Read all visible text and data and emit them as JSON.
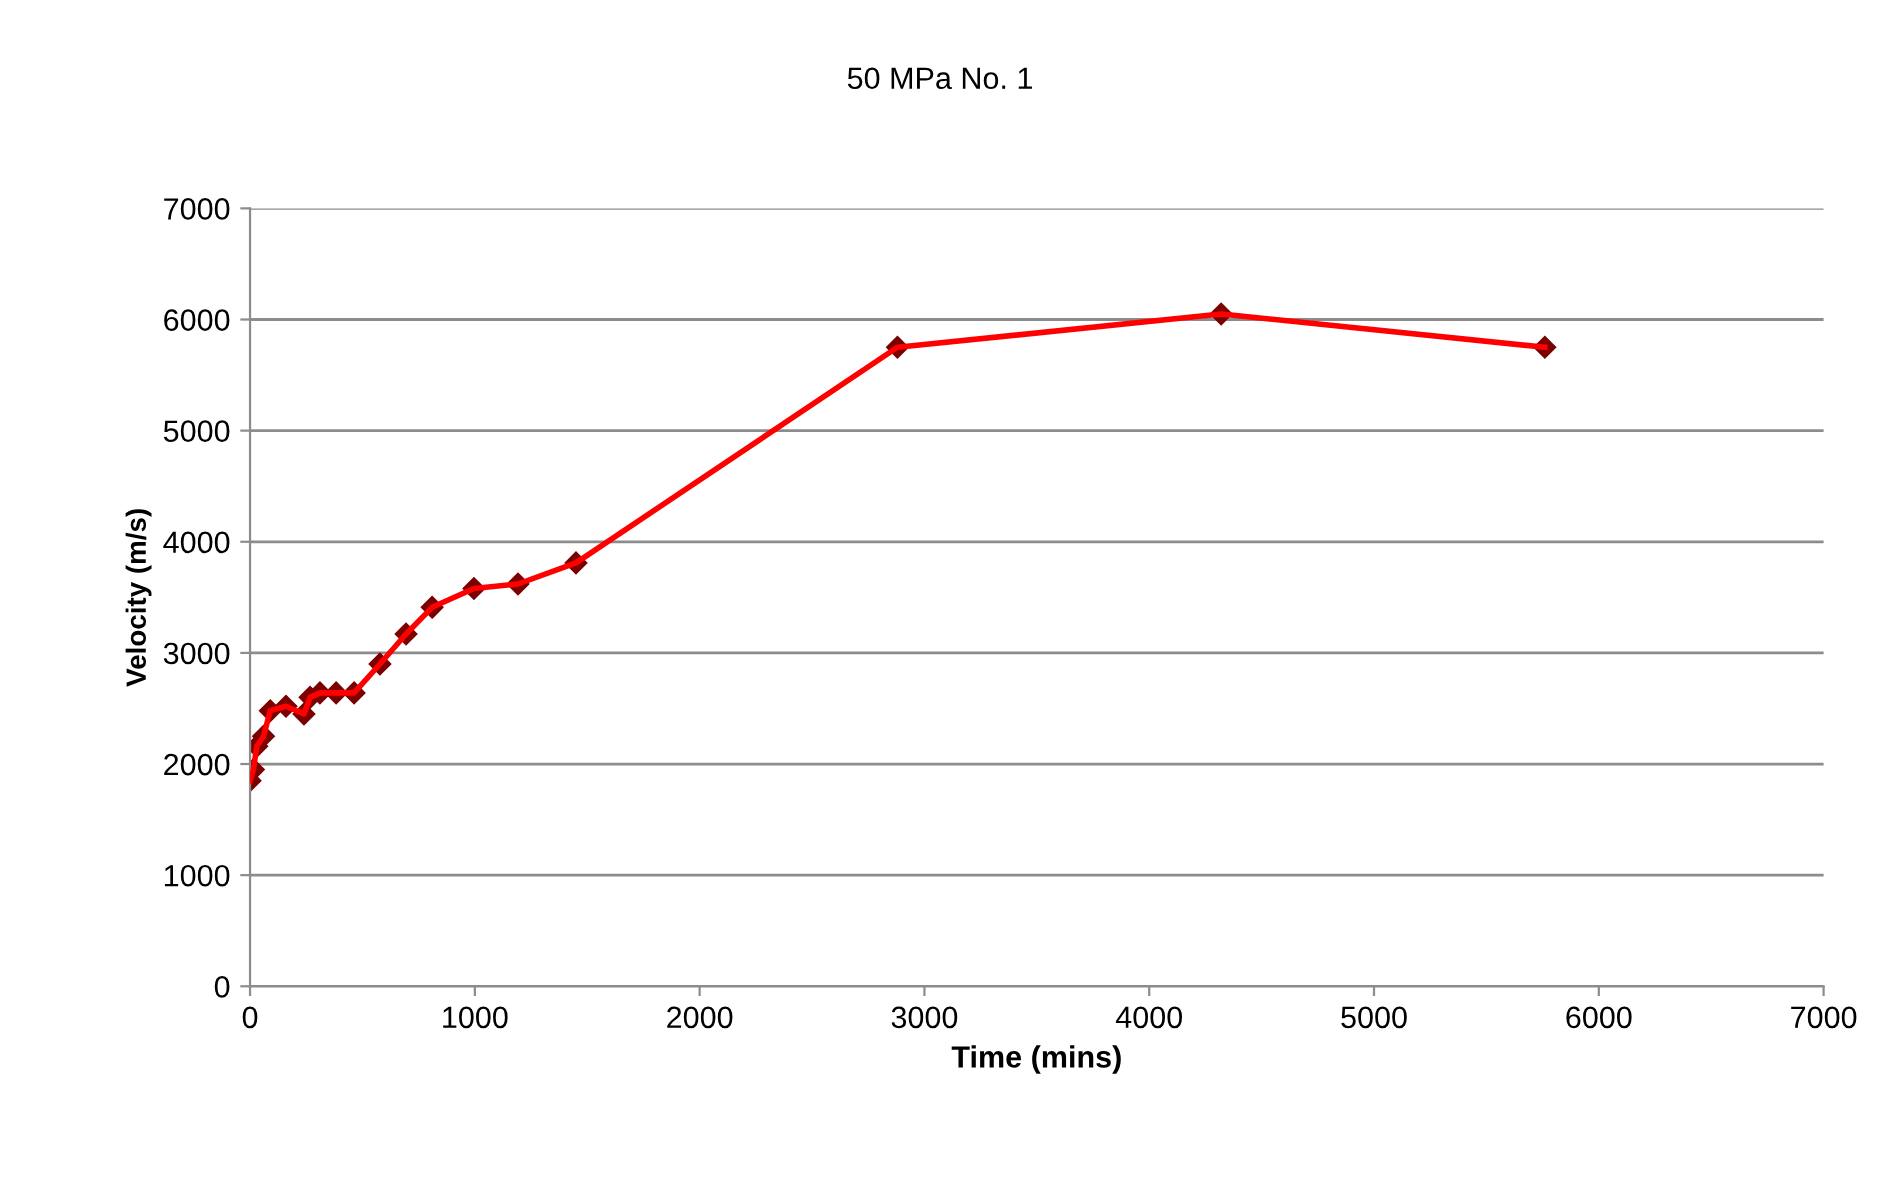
{
  "chart_data": {
    "type": "line",
    "title": "50 MPa No. 1",
    "xlabel": "Time (mins)",
    "ylabel": "Velocity (m/s)",
    "x": [
      0,
      15,
      30,
      60,
      90,
      160,
      240,
      267,
      311,
      383,
      463,
      578,
      694,
      810,
      996,
      1192,
      1450,
      2880,
      4320,
      5760
    ],
    "series": [
      {
        "color": "#ff0000",
        "colors": [
          "#7b0000",
          "#7b0000",
          "#7b0000",
          "#7b0000",
          "#7b0000",
          "#7b0000",
          "#7b0000",
          "#7b0000",
          "#7b0000",
          "#7b0000",
          "#7b0000",
          "#7b0000",
          "#7b0000",
          "#7b0000",
          "#7b0000",
          "#7b0000",
          "#7b0000",
          "#7b0000",
          "#7b0000",
          "#7b0000"
        ],
        "values": [
          1850,
          1950,
          2160,
          2250,
          2480,
          2520,
          2450,
          2600,
          2640,
          2640,
          2640,
          2900,
          3170,
          3410,
          3580,
          3620,
          3810,
          5750,
          6050,
          5750
        ]
      }
    ],
    "xlim": [
      0,
      7000
    ],
    "xticks": [
      0,
      1000,
      2000,
      3000,
      4000,
      5000,
      6000,
      7000
    ],
    "ylim": [
      0,
      7000
    ],
    "yticks": [
      0,
      1000,
      2000,
      3000,
      4000,
      5000,
      6000,
      7000
    ],
    "grid": "y",
    "legend": false,
    "marker": "diamond",
    "line_style": "solid"
  }
}
